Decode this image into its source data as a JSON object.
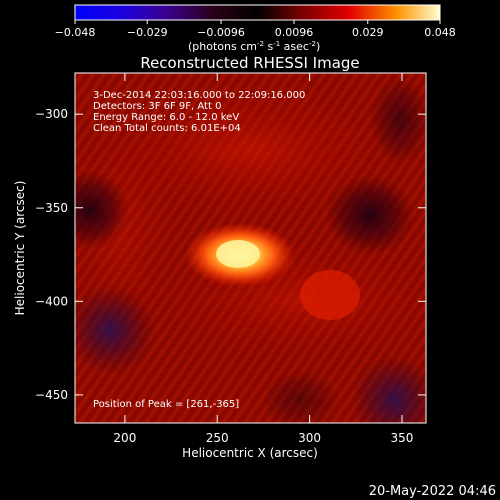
{
  "colorbar": {
    "tick_labels": [
      "-0.048",
      "-0.029",
      "-0.0096",
      "0.0096",
      "0.029",
      "0.048"
    ],
    "units_main": "(photons cm",
    "units_sup1": "-2",
    "units_mid": " s",
    "units_sup2": "-1",
    "units_end": " asec",
    "units_sup3": "-2",
    "units_close": ")",
    "range": [
      -0.048,
      0.048
    ]
  },
  "image": {
    "title": "Reconstructed RHESSI Image",
    "info_lines": [
      " 3-Dec-2014 22:03:16.000 to 22:09:16.000",
      "Detectors: 3F 6F 9F, Att 0",
      "Energy Range: 6.0 - 12.0 keV",
      "Clean    Total counts: 6.01E+04"
    ],
    "peak_label": "Position of Peak = [261,-365]",
    "peak": [
      261,
      -365
    ]
  },
  "axes": {
    "xlabel": "Heliocentric X (arcsec)",
    "ylabel": "Heliocentric Y (arcsec)",
    "xticks": [
      "200",
      "250",
      "300",
      "350"
    ],
    "yticks": [
      "-300",
      "-350",
      "-400",
      "-450"
    ],
    "xlim": [
      173,
      363
    ],
    "ylim": [
      -465,
      -278
    ]
  },
  "footer": {
    "timestamp": "20-May-2022 04:46"
  }
}
